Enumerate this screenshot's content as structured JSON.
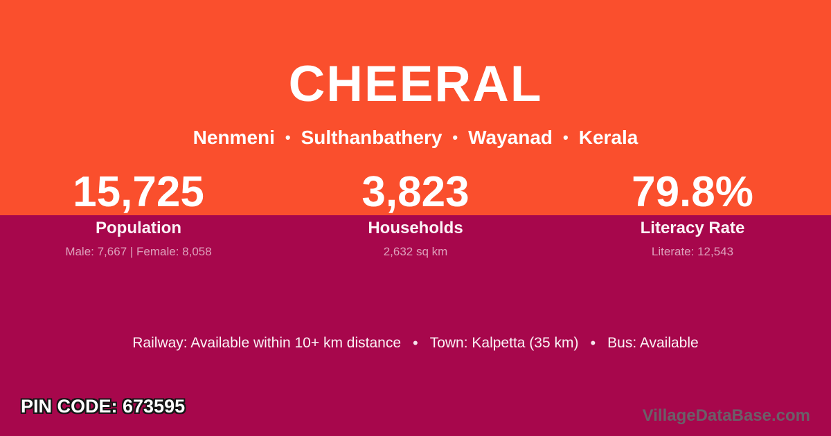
{
  "colors": {
    "orange": "#FA4F2D",
    "crimson": "#A7074C",
    "text": "#FFFFFF",
    "label": "rgba(255,255,255,0.95)",
    "muted": "rgba(255,255,255,0.62)",
    "facility": "rgba(255,255,255,0.95)",
    "watermark": "#6B5F68",
    "outline": "#161616"
  },
  "header": {
    "village_name": "CHEERAL",
    "location": {
      "parts": [
        "Nenmeni",
        "Sulthanbathery",
        "Wayanad",
        "Kerala"
      ],
      "separator": "•"
    }
  },
  "stats": [
    {
      "value": "15,725",
      "label": "Population",
      "detail": "Male: 7,667 | Female: 8,058"
    },
    {
      "value": "3,823",
      "label": "Households",
      "detail": "2,632 sq km"
    },
    {
      "value": "79.8%",
      "label": "Literacy Rate",
      "detail": "Literate: 12,543"
    }
  ],
  "facilities": {
    "items": [
      "Railway: Available within 10+ km distance",
      "Town: Kalpetta (35 km)",
      "Bus: Available"
    ],
    "separator": "•"
  },
  "footer": {
    "pin_code": "PIN CODE: 673595",
    "watermark": "VillageDataBase.com"
  }
}
